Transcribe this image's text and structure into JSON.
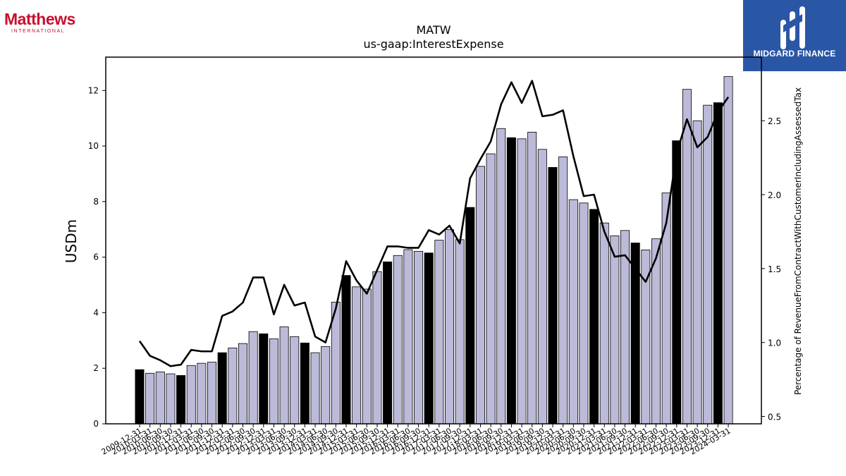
{
  "logos": {
    "left": {
      "name": "Matthews",
      "tagline": "INTERNATIONAL"
    },
    "right": {
      "name": "MIDGARD FINANCE"
    }
  },
  "colors": {
    "annual_bar": "#000000",
    "quarter_bar": "#bcbad9",
    "line": "#000000"
  },
  "chart_data": {
    "type": "bar",
    "title": "MATW",
    "subtitle": "us-gaap:InterestExpense",
    "ylabel": "USDm",
    "y2label": "Percentage of RevenueFromContractWithCustomerIncludingAssessedTax",
    "ylim": [
      0,
      13.2
    ],
    "y2lim": [
      0.45,
      2.93
    ],
    "yticks": [
      0,
      2,
      4,
      6,
      8,
      10,
      12
    ],
    "y2ticks": [
      0.5,
      1.0,
      1.5,
      2.0,
      2.5
    ],
    "grid": false,
    "categories": [
      "2009-12-31",
      "2010-03-31",
      "2010-06-30",
      "2010-09-30",
      "2010-12-31",
      "2011-03-31",
      "2011-06-30",
      "2011-09-30",
      "2011-12-31",
      "2012-03-31",
      "2012-06-30",
      "2012-09-30",
      "2012-12-31",
      "2013-03-31",
      "2013-06-30",
      "2013-09-30",
      "2013-12-31",
      "2014-03-31",
      "2014-06-30",
      "2014-09-30",
      "2014-12-31",
      "2015-03-31",
      "2015-06-30",
      "2015-09-30",
      "2015-12-31",
      "2016-03-31",
      "2016-06-30",
      "2016-09-30",
      "2016-12-31",
      "2017-03-31",
      "2017-06-30",
      "2017-09-30",
      "2017-12-31",
      "2018-03-31",
      "2018-06-30",
      "2018-09-30",
      "2018-12-31",
      "2019-03-31",
      "2019-06-30",
      "2019-09-30",
      "2019-12-31",
      "2020-03-31",
      "2020-06-30",
      "2020-09-30",
      "2020-12-31",
      "2021-03-31",
      "2021-06-30",
      "2021-09-30",
      "2021-12-31",
      "2022-03-31",
      "2022-06-30",
      "2022-09-30",
      "2022-12-31",
      "2023-03-31",
      "2023-06-30",
      "2023-09-30",
      "2023-12-31",
      "2024-03-31"
    ],
    "series": [
      {
        "type": "bar",
        "axis": "left",
        "values": [
          1.95,
          1.82,
          1.87,
          1.8,
          1.74,
          2.1,
          2.18,
          2.22,
          2.56,
          2.73,
          2.89,
          3.32,
          3.24,
          3.06,
          3.49,
          3.14,
          2.91,
          2.56,
          2.78,
          4.38,
          5.34,
          4.93,
          4.85,
          5.48,
          5.83,
          6.06,
          6.27,
          6.21,
          6.15,
          6.61,
          6.99,
          6.63,
          7.79,
          9.27,
          9.72,
          10.63,
          10.3,
          10.26,
          10.5,
          9.88,
          9.23,
          9.61,
          8.07,
          7.95,
          7.72,
          7.23,
          6.77,
          6.96,
          6.51,
          6.26,
          6.66,
          8.31,
          10.19,
          12.04,
          10.91,
          11.47,
          11.56,
          12.5
        ],
        "highlight": [
          true,
          false,
          false,
          false,
          true,
          false,
          false,
          false,
          true,
          false,
          false,
          false,
          true,
          false,
          false,
          false,
          true,
          false,
          false,
          false,
          true,
          false,
          false,
          false,
          true,
          false,
          false,
          false,
          true,
          false,
          false,
          false,
          true,
          false,
          false,
          false,
          true,
          false,
          false,
          false,
          true,
          false,
          false,
          false,
          true,
          false,
          false,
          false,
          true,
          false,
          false,
          false,
          true,
          false,
          false,
          false,
          true,
          false
        ]
      },
      {
        "type": "line",
        "axis": "right",
        "values": [
          1.01,
          0.91,
          0.88,
          0.84,
          0.85,
          0.95,
          0.94,
          0.94,
          1.18,
          1.21,
          1.27,
          1.44,
          1.44,
          1.19,
          1.39,
          1.25,
          1.27,
          1.04,
          1.0,
          1.23,
          1.55,
          1.42,
          1.33,
          1.49,
          1.65,
          1.65,
          1.64,
          1.64,
          1.76,
          1.73,
          1.79,
          1.67,
          2.11,
          2.24,
          2.36,
          2.61,
          2.76,
          2.62,
          2.77,
          2.53,
          2.54,
          2.57,
          2.26,
          1.99,
          2.0,
          1.75,
          1.58,
          1.59,
          1.5,
          1.41,
          1.57,
          1.81,
          2.28,
          2.51,
          2.32,
          2.39,
          2.56,
          2.66
        ]
      }
    ]
  }
}
